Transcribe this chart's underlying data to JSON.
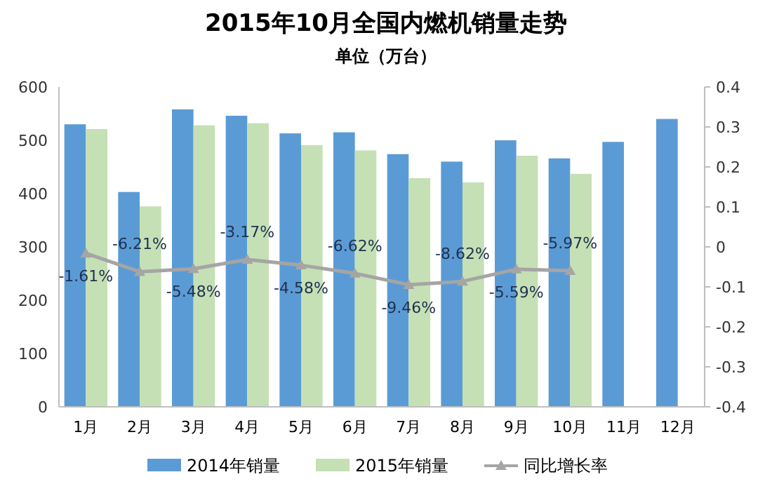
{
  "chart_data": {
    "type": "bar",
    "title": "2015年10月全国内燃机销量走势",
    "subtitle": "单位（万台）",
    "categories": [
      "1月",
      "2月",
      "3月",
      "4月",
      "5月",
      "6月",
      "7月",
      "8月",
      "9月",
      "10月",
      "11月",
      "12月"
    ],
    "series": [
      {
        "name": "2014年销量",
        "color": "#5b9bd5",
        "values": [
          530,
          403,
          558,
          546,
          513,
          515,
          474,
          460,
          500,
          466,
          497,
          540
        ]
      },
      {
        "name": "2015年销量",
        "color": "#c5e0b4",
        "values": [
          521,
          376,
          528,
          532,
          491,
          481,
          429,
          421,
          471,
          437,
          null,
          null
        ]
      },
      {
        "name": "同比增长率",
        "type": "line",
        "axis": "y2",
        "color": "#a5a5a5",
        "marker": "triangle",
        "values": [
          -0.0161,
          -0.0621,
          -0.0548,
          -0.0317,
          -0.0458,
          -0.0662,
          -0.0946,
          -0.0862,
          -0.0559,
          -0.0597,
          null,
          null
        ],
        "value_labels": [
          "-1.61%",
          "-6.21%",
          "-5.48%",
          "-3.17%",
          "-4.58%",
          "-6.62%",
          "-9.46%",
          "-8.62%",
          "-5.59%",
          "-5.97%",
          null,
          null
        ]
      }
    ],
    "ylim": [
      0,
      600
    ],
    "yticks": [
      0,
      100,
      200,
      300,
      400,
      500,
      600
    ],
    "y2lim": [
      -0.4,
      0.4
    ],
    "y2ticks": [
      -0.4,
      -0.3,
      -0.2,
      -0.1,
      0,
      0.1,
      0.2,
      0.3,
      0.4
    ],
    "legend": "bottom",
    "grid": false
  }
}
